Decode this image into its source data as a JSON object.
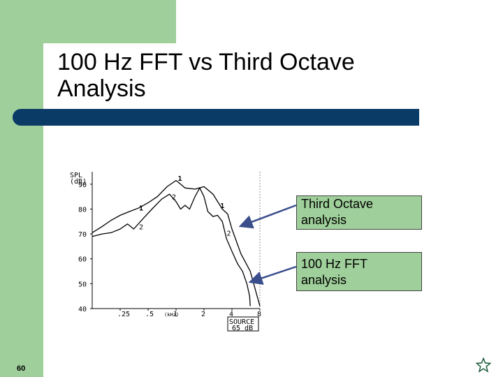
{
  "slide": {
    "title_line1": "100 Hz FFT vs Third Octave",
    "title_line2": "Analysis",
    "page_number": "60",
    "accent_green": "#9fcf9a",
    "accent_navy": "#0a3a66"
  },
  "callouts": {
    "third_octave_line1": "Third Octave",
    "third_octave_line2": "analysis",
    "fft_line1": "100 Hz FFT",
    "fft_line2": "analysis"
  },
  "icons": {
    "nav": "star-icon"
  },
  "chart_data": {
    "type": "line",
    "ylabel_line1": "SPL",
    "ylabel_line2": "(dB)",
    "xunit": "(kHz)",
    "source_line1": "SOURCE",
    "source_line2": "65 dB",
    "log_x": true,
    "xlim": [
      0.125,
      8
    ],
    "ylim": [
      40,
      95
    ],
    "x_ticks": [
      {
        "value": 0.25,
        "label": ".25"
      },
      {
        "value": 0.5,
        "label": ".5"
      },
      {
        "value": 1,
        "label": "1"
      },
      {
        "value": 2,
        "label": "2"
      },
      {
        "value": 4,
        "label": "4"
      },
      {
        "value": 8,
        "label": "8"
      }
    ],
    "y_ticks": [
      {
        "value": 90,
        "label": "90"
      },
      {
        "value": 80,
        "label": "80"
      },
      {
        "value": 70,
        "label": "70"
      },
      {
        "value": 60,
        "label": "60"
      },
      {
        "value": 50,
        "label": "50"
      },
      {
        "value": 40,
        "label": "40"
      }
    ],
    "series": [
      {
        "marker": "1",
        "points": [
          [
            0.125,
            70.5
          ],
          [
            0.16,
            73
          ],
          [
            0.2,
            75.5
          ],
          [
            0.25,
            77.5
          ],
          [
            0.315,
            79
          ],
          [
            0.4,
            80.5
          ],
          [
            0.5,
            82.5
          ],
          [
            0.63,
            85
          ],
          [
            0.8,
            89
          ],
          [
            1.0,
            91.5
          ],
          [
            1.12,
            90
          ],
          [
            1.25,
            88.5
          ],
          [
            1.6,
            88
          ],
          [
            2.0,
            89
          ],
          [
            2.5,
            86
          ],
          [
            3.15,
            80
          ],
          [
            3.6,
            78
          ],
          [
            4.0,
            72
          ],
          [
            5.0,
            62
          ],
          [
            6.3,
            55
          ],
          [
            8.0,
            41
          ]
        ],
        "labels": [
          {
            "x": 0.42,
            "y": 80.5
          },
          {
            "x": 1.1,
            "y": 92.5
          },
          {
            "x": 3.15,
            "y": 81.5
          }
        ]
      },
      {
        "marker": "2",
        "points": [
          [
            0.125,
            69
          ],
          [
            0.16,
            70
          ],
          [
            0.2,
            70.5
          ],
          [
            0.25,
            72
          ],
          [
            0.3,
            74
          ],
          [
            0.35,
            72
          ],
          [
            0.45,
            76.5
          ],
          [
            0.55,
            80
          ],
          [
            0.7,
            84
          ],
          [
            0.85,
            86
          ],
          [
            1.0,
            83
          ],
          [
            1.12,
            80
          ],
          [
            1.25,
            81.5
          ],
          [
            1.4,
            80
          ],
          [
            1.6,
            85
          ],
          [
            1.8,
            88.5
          ],
          [
            2.0,
            85
          ],
          [
            2.2,
            79
          ],
          [
            2.5,
            77
          ],
          [
            2.8,
            77.5
          ],
          [
            3.15,
            75
          ],
          [
            3.5,
            68
          ],
          [
            4.0,
            63
          ],
          [
            4.6,
            58
          ],
          [
            5.2,
            55
          ],
          [
            5.8,
            50
          ],
          [
            6.2,
            45
          ],
          [
            6.3,
            41
          ]
        ],
        "labels": [
          {
            "x": 0.42,
            "y": 73
          },
          {
            "x": 0.95,
            "y": 85
          },
          {
            "x": 3.7,
            "y": 70.5
          }
        ]
      }
    ]
  }
}
